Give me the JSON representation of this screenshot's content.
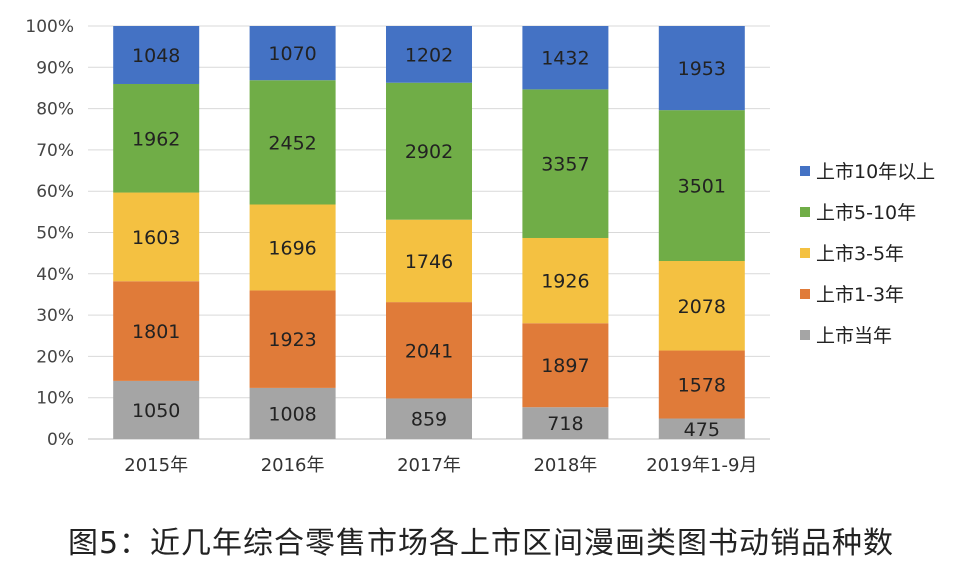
{
  "caption": "图5：近几年综合零售市场各上市区间漫画类图书动销品种数",
  "chart_data": {
    "type": "bar",
    "stacked": "percent",
    "categories": [
      "2015年",
      "2016年",
      "2017年",
      "2018年",
      "2019年1-9月"
    ],
    "series": [
      {
        "name": "上市当年",
        "color": "#a5a5a5",
        "values": [
          1050,
          1008,
          859,
          718,
          475
        ]
      },
      {
        "name": "上市1-3年",
        "color": "#e07b39",
        "values": [
          1801,
          1923,
          2041,
          1897,
          1578
        ]
      },
      {
        "name": "上市3-5年",
        "color": "#f4c141",
        "values": [
          1603,
          1696,
          1746,
          1926,
          2078
        ]
      },
      {
        "name": "上市5-10年",
        "color": "#70ad47",
        "values": [
          1962,
          2452,
          2902,
          3357,
          3501
        ]
      },
      {
        "name": "上市10年以上",
        "color": "#4472c4",
        "values": [
          1048,
          1070,
          1202,
          1432,
          1953
        ]
      }
    ],
    "y_ticks": [
      "0%",
      "10%",
      "20%",
      "30%",
      "40%",
      "50%",
      "60%",
      "70%",
      "80%",
      "90%",
      "100%"
    ],
    "ylim": [
      0,
      100
    ],
    "grid": true,
    "legend_position": "right"
  }
}
